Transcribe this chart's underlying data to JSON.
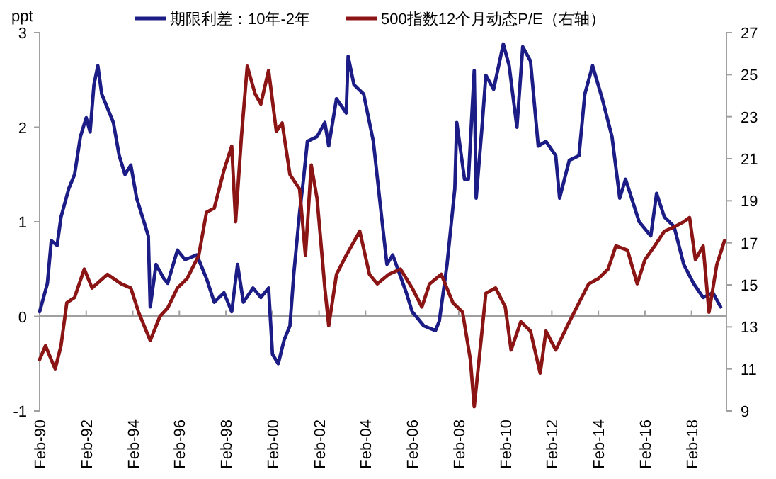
{
  "chart_data": {
    "type": "line",
    "ylabel": "ppt",
    "legend": "top",
    "grid": false,
    "line_style": "solid",
    "xlim": [
      "1990-02",
      "2019-08"
    ],
    "xticks": [
      {
        "value": "1990-02",
        "label": "Feb-90"
      },
      {
        "value": "1992-02",
        "label": "Feb-92"
      },
      {
        "value": "1994-02",
        "label": "Feb-94"
      },
      {
        "value": "1996-02",
        "label": "Feb-96"
      },
      {
        "value": "1998-02",
        "label": "Feb-98"
      },
      {
        "value": "2000-02",
        "label": "Feb-00"
      },
      {
        "value": "2002-02",
        "label": "Feb-02"
      },
      {
        "value": "2004-02",
        "label": "Feb-04"
      },
      {
        "value": "2006-02",
        "label": "Feb-06"
      },
      {
        "value": "2008-02",
        "label": "Feb-08"
      },
      {
        "value": "2010-02",
        "label": "Feb-10"
      },
      {
        "value": "2012-02",
        "label": "Feb-12"
      },
      {
        "value": "2014-02",
        "label": "Feb-14"
      },
      {
        "value": "2016-02",
        "label": "Feb-16"
      },
      {
        "value": "2018-02",
        "label": "Feb-18"
      }
    ],
    "ref_lines": [
      {
        "axis": "y",
        "value": 0,
        "color": "#a0a0a0"
      }
    ],
    "ylim": [
      -1,
      3
    ],
    "yticks": [
      -1,
      0,
      1,
      2,
      3
    ],
    "y2lim": [
      9,
      27
    ],
    "y2ticks": [
      9,
      11,
      13,
      15,
      17,
      19,
      21,
      23,
      25,
      27
    ],
    "series": [
      {
        "name": "期限利差：10年-2年",
        "color": "#1c1c86",
        "x": [
          "1990-02",
          "1990-04",
          "1990-06",
          "1990-08",
          "1990-11",
          "1991-01",
          "1991-05",
          "1991-08",
          "1991-11",
          "1992-02",
          "1992-04",
          "1992-06",
          "1992-08",
          "1992-10",
          "1992-12",
          "1993-04",
          "1993-07",
          "1993-10",
          "1994-01",
          "1994-04",
          "1994-07",
          "1994-10",
          "1994-11",
          "1995-02",
          "1995-06",
          "1995-08",
          "1996-01",
          "1996-05",
          "1996-11",
          "1997-04",
          "1997-08",
          "1998-01",
          "1998-05",
          "1998-08",
          "1998-11",
          "1999-04",
          "1999-08",
          "1999-12",
          "2000-02",
          "2000-05",
          "2000-08",
          "2000-11",
          "2001-01",
          "2001-04",
          "2001-06",
          "2001-08",
          "2002-01",
          "2002-05",
          "2002-07",
          "2002-11",
          "2003-04",
          "2003-05",
          "2003-08",
          "2004-01",
          "2004-06",
          "2004-10",
          "2005-01",
          "2005-04",
          "2005-11",
          "2006-02",
          "2006-08",
          "2007-02",
          "2007-04",
          "2007-08",
          "2007-12",
          "2008-01",
          "2008-05",
          "2008-07",
          "2008-10",
          "2008-11",
          "2009-02",
          "2009-04",
          "2009-08",
          "2010-01",
          "2010-04",
          "2010-08",
          "2010-11",
          "2011-03",
          "2011-07",
          "2011-11",
          "2012-04",
          "2012-06",
          "2012-11",
          "2013-04",
          "2013-07",
          "2013-11",
          "2014-04",
          "2014-09",
          "2015-01",
          "2015-04",
          "2015-11",
          "2016-05",
          "2016-08",
          "2016-12",
          "2017-05",
          "2017-10",
          "2018-03",
          "2018-08",
          "2019-01",
          "2019-05"
        ],
        "values": [
          0.05,
          0.2,
          0.35,
          0.8,
          0.75,
          1.05,
          1.35,
          1.5,
          1.9,
          2.1,
          1.95,
          2.45,
          2.65,
          2.35,
          2.25,
          2.05,
          1.7,
          1.5,
          1.6,
          1.25,
          1.05,
          0.85,
          0.1,
          0.55,
          0.4,
          0.35,
          0.7,
          0.6,
          0.65,
          0.4,
          0.15,
          0.25,
          0.05,
          0.55,
          0.15,
          0.3,
          0.2,
          0.3,
          -0.4,
          -0.5,
          -0.25,
          -0.1,
          0.45,
          1.1,
          1.45,
          1.85,
          1.9,
          2.05,
          1.8,
          2.3,
          2.15,
          2.75,
          2.45,
          2.35,
          1.85,
          1.1,
          0.55,
          0.65,
          0.25,
          0.05,
          -0.1,
          -0.15,
          -0.05,
          0.55,
          1.35,
          2.05,
          1.45,
          1.45,
          2.6,
          1.25,
          2.0,
          2.55,
          2.4,
          2.88,
          2.65,
          2.0,
          2.85,
          2.7,
          1.8,
          1.85,
          1.7,
          1.25,
          1.65,
          1.7,
          2.35,
          2.65,
          2.3,
          1.9,
          1.25,
          1.45,
          1.0,
          0.85,
          1.3,
          1.05,
          0.95,
          0.55,
          0.35,
          0.2,
          0.25,
          0.1
        ]
      },
      {
        "name": "500指数12个月动态P/E（右轴）",
        "color": "#8b1414",
        "axis": "y2",
        "x": [
          "1990-02",
          "1990-05",
          "1990-10",
          "1991-01",
          "1991-04",
          "1991-08",
          "1992-01",
          "1992-05",
          "1993-01",
          "1993-08",
          "1994-01",
          "1994-05",
          "1994-11",
          "1995-04",
          "1995-08",
          "1996-01",
          "1996-06",
          "1996-12",
          "1997-04",
          "1997-08",
          "1998-01",
          "1998-05",
          "1998-07",
          "1998-10",
          "1999-01",
          "1999-05",
          "1999-08",
          "1999-12",
          "2000-04",
          "2000-07",
          "2000-11",
          "2001-04",
          "2001-07",
          "2001-10",
          "2002-01",
          "2002-05",
          "2002-07",
          "2002-11",
          "2003-04",
          "2003-11",
          "2004-04",
          "2004-08",
          "2005-02",
          "2005-08",
          "2006-02",
          "2006-07",
          "2006-11",
          "2007-05",
          "2007-11",
          "2008-04",
          "2008-08",
          "2008-10",
          "2008-12",
          "2009-04",
          "2009-09",
          "2010-02",
          "2010-05",
          "2010-10",
          "2011-03",
          "2011-08",
          "2011-11",
          "2012-04",
          "2012-10",
          "2013-04",
          "2013-09",
          "2014-02",
          "2014-07",
          "2014-11",
          "2015-05",
          "2015-10",
          "2016-02",
          "2016-07",
          "2016-12",
          "2017-05",
          "2017-10",
          "2018-01",
          "2018-04",
          "2018-08",
          "2018-11",
          "2019-03",
          "2019-07"
        ],
        "values": [
          11.45,
          12.1,
          11.0,
          12.1,
          14.15,
          14.4,
          15.75,
          14.85,
          15.5,
          15.05,
          14.85,
          13.7,
          12.35,
          13.5,
          13.9,
          14.85,
          15.3,
          16.4,
          18.45,
          18.65,
          20.45,
          21.6,
          18.0,
          22.05,
          25.4,
          24.1,
          23.6,
          25.2,
          22.3,
          22.7,
          20.25,
          19.55,
          16.4,
          20.7,
          19.1,
          14.85,
          13.05,
          15.5,
          16.4,
          17.55,
          15.5,
          15.05,
          15.5,
          15.75,
          14.85,
          13.95,
          15.05,
          15.5,
          14.15,
          13.7,
          11.45,
          9.2,
          11.0,
          14.6,
          14.85,
          13.95,
          11.9,
          13.25,
          12.8,
          10.8,
          12.8,
          11.9,
          13.05,
          14.15,
          15.05,
          15.3,
          15.75,
          16.85,
          16.65,
          15.05,
          16.2,
          16.85,
          17.55,
          17.75,
          18.0,
          18.2,
          16.2,
          16.85,
          13.7,
          15.95,
          17.1
        ]
      }
    ]
  }
}
